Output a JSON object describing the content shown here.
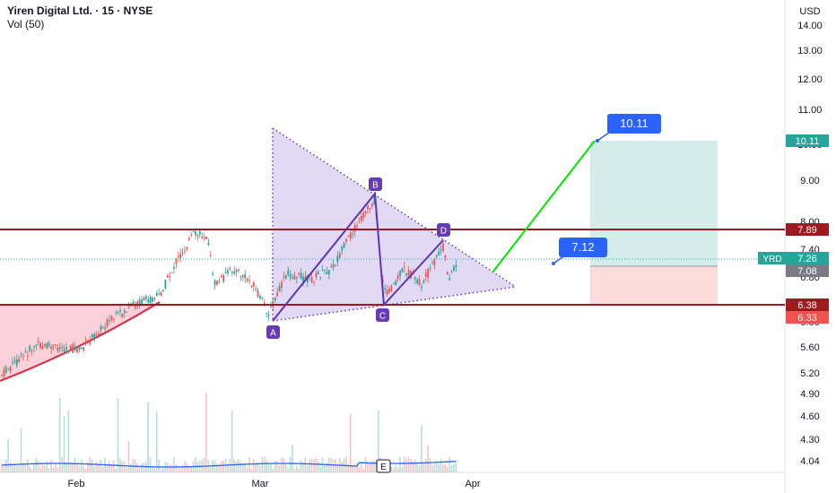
{
  "header": {
    "symbol_line": "Yiren Digital Ltd. · 15 · NYSE",
    "indicator_line": "Vol (50)"
  },
  "axis": {
    "currency": "USD",
    "price_ticks": [
      "14.00",
      "13.00",
      "12.00",
      "11.00",
      "10.00",
      "9.00",
      "8.00",
      "7.40",
      "6.80",
      "6.00",
      "5.60",
      "5.20",
      "4.90",
      "4.60",
      "4.30",
      "4.04"
    ],
    "time_labels": [
      "Feb",
      "Mar",
      "Apr"
    ]
  },
  "pattern_points": [
    "A",
    "B",
    "C",
    "D"
  ],
  "callouts": {
    "target": "10.11",
    "entry": "7.12"
  },
  "badges": {
    "target": "10.11",
    "resistance": "7.89",
    "ticker": "YRD",
    "last": "7.26",
    "stop": "7.08",
    "support": "6.38",
    "low": "6.33"
  },
  "event_marker": "E",
  "colors": {
    "resistance_line": "#9b1b1f",
    "pattern_fill": "#b39ddb",
    "point_label": "#673ab7",
    "callout": "#2962ff",
    "profit_zone": "#26a69a",
    "loss_zone": "#ef5350",
    "trend_up": "#00e600",
    "candle_up": "#26a69a",
    "candle_down": "#ef5350"
  }
}
